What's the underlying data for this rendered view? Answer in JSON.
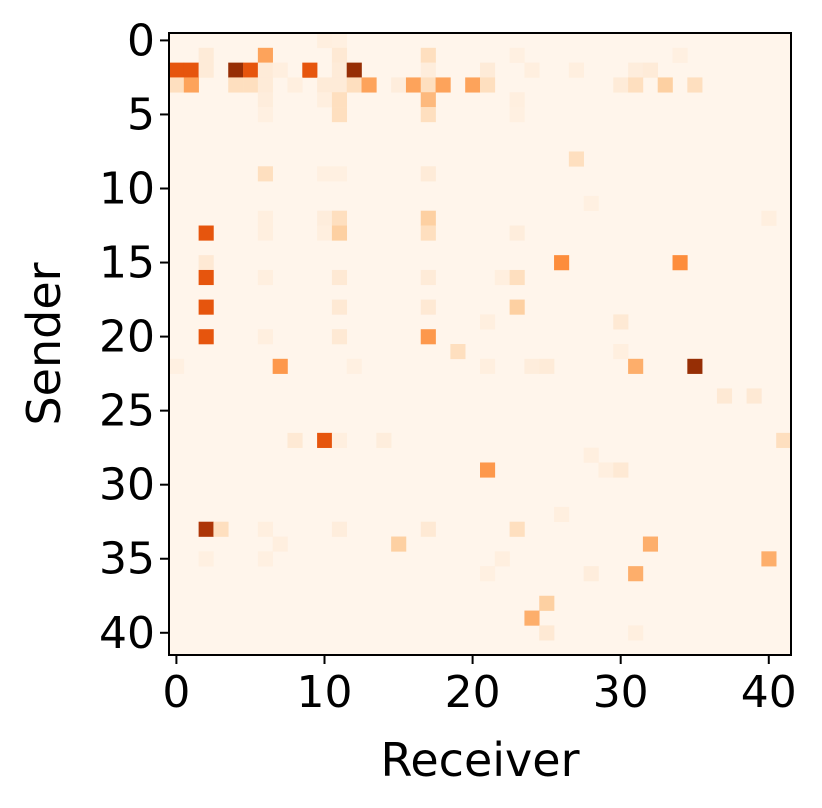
{
  "chart_data": {
    "type": "heatmap",
    "title": "",
    "xlabel": "Receiver",
    "ylabel": "Sender",
    "n_rows": 42,
    "n_cols": 42,
    "xlim": [
      0,
      41
    ],
    "ylim": [
      0,
      41
    ],
    "y_inverted": true,
    "x_ticks": [
      "0",
      "10",
      "20",
      "30",
      "40"
    ],
    "y_ticks": [
      "0",
      "5",
      "10",
      "15",
      "20",
      "25",
      "30",
      "35",
      "40"
    ],
    "colormap": "Oranges",
    "background_color": "#fff5eb",
    "value_range": [
      0,
      1
    ],
    "grid": false,
    "legend": "none",
    "cells": [
      {
        "row": 0,
        "col": 10,
        "value": 0.06
      },
      {
        "row": 0,
        "col": 11,
        "value": 0.05
      },
      {
        "row": 1,
        "col": 2,
        "value": 0.1
      },
      {
        "row": 1,
        "col": 6,
        "value": 0.5
      },
      {
        "row": 1,
        "col": 11,
        "value": 0.12
      },
      {
        "row": 1,
        "col": 17,
        "value": 0.2
      },
      {
        "row": 1,
        "col": 23,
        "value": 0.05
      },
      {
        "row": 1,
        "col": 34,
        "value": 0.05
      },
      {
        "row": 2,
        "col": 0,
        "value": 0.72
      },
      {
        "row": 2,
        "col": 1,
        "value": 0.72
      },
      {
        "row": 2,
        "col": 2,
        "value": 0.1
      },
      {
        "row": 2,
        "col": 4,
        "value": 0.95
      },
      {
        "row": 2,
        "col": 5,
        "value": 0.72
      },
      {
        "row": 2,
        "col": 6,
        "value": 0.1
      },
      {
        "row": 2,
        "col": 7,
        "value": 0.06
      },
      {
        "row": 2,
        "col": 9,
        "value": 0.72
      },
      {
        "row": 2,
        "col": 11,
        "value": 0.1
      },
      {
        "row": 2,
        "col": 12,
        "value": 0.95
      },
      {
        "row": 2,
        "col": 17,
        "value": 0.08
      },
      {
        "row": 2,
        "col": 21,
        "value": 0.1
      },
      {
        "row": 2,
        "col": 24,
        "value": 0.06
      },
      {
        "row": 2,
        "col": 27,
        "value": 0.06
      },
      {
        "row": 2,
        "col": 31,
        "value": 0.08
      },
      {
        "row": 2,
        "col": 32,
        "value": 0.1
      },
      {
        "row": 3,
        "col": 0,
        "value": 0.2
      },
      {
        "row": 3,
        "col": 1,
        "value": 0.5
      },
      {
        "row": 3,
        "col": 4,
        "value": 0.2
      },
      {
        "row": 3,
        "col": 5,
        "value": 0.2
      },
      {
        "row": 3,
        "col": 6,
        "value": 0.1
      },
      {
        "row": 3,
        "col": 8,
        "value": 0.06
      },
      {
        "row": 3,
        "col": 10,
        "value": 0.1
      },
      {
        "row": 3,
        "col": 11,
        "value": 0.1
      },
      {
        "row": 3,
        "col": 12,
        "value": 0.2
      },
      {
        "row": 3,
        "col": 13,
        "value": 0.5
      },
      {
        "row": 3,
        "col": 15,
        "value": 0.08
      },
      {
        "row": 3,
        "col": 16,
        "value": 0.5
      },
      {
        "row": 3,
        "col": 17,
        "value": 0.2
      },
      {
        "row": 3,
        "col": 18,
        "value": 0.5
      },
      {
        "row": 3,
        "col": 20,
        "value": 0.5
      },
      {
        "row": 3,
        "col": 21,
        "value": 0.2
      },
      {
        "row": 3,
        "col": 30,
        "value": 0.1
      },
      {
        "row": 3,
        "col": 31,
        "value": 0.2
      },
      {
        "row": 3,
        "col": 33,
        "value": 0.3
      },
      {
        "row": 3,
        "col": 35,
        "value": 0.2
      },
      {
        "row": 4,
        "col": 6,
        "value": 0.08
      },
      {
        "row": 4,
        "col": 10,
        "value": 0.06
      },
      {
        "row": 4,
        "col": 11,
        "value": 0.2
      },
      {
        "row": 4,
        "col": 17,
        "value": 0.4
      },
      {
        "row": 4,
        "col": 23,
        "value": 0.06
      },
      {
        "row": 5,
        "col": 6,
        "value": 0.05
      },
      {
        "row": 5,
        "col": 11,
        "value": 0.2
      },
      {
        "row": 5,
        "col": 17,
        "value": 0.2
      },
      {
        "row": 5,
        "col": 23,
        "value": 0.05
      },
      {
        "row": 8,
        "col": 27,
        "value": 0.2
      },
      {
        "row": 9,
        "col": 6,
        "value": 0.2
      },
      {
        "row": 9,
        "col": 10,
        "value": 0.05
      },
      {
        "row": 9,
        "col": 11,
        "value": 0.05
      },
      {
        "row": 9,
        "col": 17,
        "value": 0.1
      },
      {
        "row": 11,
        "col": 28,
        "value": 0.05
      },
      {
        "row": 12,
        "col": 6,
        "value": 0.06
      },
      {
        "row": 12,
        "col": 10,
        "value": 0.08
      },
      {
        "row": 12,
        "col": 11,
        "value": 0.2
      },
      {
        "row": 12,
        "col": 17,
        "value": 0.3
      },
      {
        "row": 12,
        "col": 40,
        "value": 0.06
      },
      {
        "row": 13,
        "col": 2,
        "value": 0.72
      },
      {
        "row": 13,
        "col": 6,
        "value": 0.06
      },
      {
        "row": 13,
        "col": 10,
        "value": 0.06
      },
      {
        "row": 13,
        "col": 11,
        "value": 0.3
      },
      {
        "row": 13,
        "col": 17,
        "value": 0.2
      },
      {
        "row": 13,
        "col": 23,
        "value": 0.08
      },
      {
        "row": 15,
        "col": 2,
        "value": 0.12
      },
      {
        "row": 15,
        "col": 26,
        "value": 0.6
      },
      {
        "row": 15,
        "col": 34,
        "value": 0.6
      },
      {
        "row": 16,
        "col": 2,
        "value": 0.72
      },
      {
        "row": 16,
        "col": 6,
        "value": 0.06
      },
      {
        "row": 16,
        "col": 11,
        "value": 0.12
      },
      {
        "row": 16,
        "col": 17,
        "value": 0.1
      },
      {
        "row": 16,
        "col": 22,
        "value": 0.06
      },
      {
        "row": 16,
        "col": 23,
        "value": 0.2
      },
      {
        "row": 18,
        "col": 2,
        "value": 0.72
      },
      {
        "row": 18,
        "col": 11,
        "value": 0.12
      },
      {
        "row": 18,
        "col": 17,
        "value": 0.12
      },
      {
        "row": 18,
        "col": 23,
        "value": 0.3
      },
      {
        "row": 19,
        "col": 21,
        "value": 0.06
      },
      {
        "row": 19,
        "col": 30,
        "value": 0.12
      },
      {
        "row": 20,
        "col": 2,
        "value": 0.72
      },
      {
        "row": 20,
        "col": 6,
        "value": 0.06
      },
      {
        "row": 20,
        "col": 11,
        "value": 0.12
      },
      {
        "row": 20,
        "col": 17,
        "value": 0.55
      },
      {
        "row": 21,
        "col": 19,
        "value": 0.2
      },
      {
        "row": 21,
        "col": 30,
        "value": 0.06
      },
      {
        "row": 22,
        "col": 0,
        "value": 0.05
      },
      {
        "row": 22,
        "col": 7,
        "value": 0.55
      },
      {
        "row": 22,
        "col": 12,
        "value": 0.05
      },
      {
        "row": 22,
        "col": 21,
        "value": 0.06
      },
      {
        "row": 22,
        "col": 24,
        "value": 0.08
      },
      {
        "row": 22,
        "col": 25,
        "value": 0.1
      },
      {
        "row": 22,
        "col": 31,
        "value": 0.45
      },
      {
        "row": 22,
        "col": 35,
        "value": 0.95
      },
      {
        "row": 24,
        "col": 37,
        "value": 0.12
      },
      {
        "row": 24,
        "col": 39,
        "value": 0.12
      },
      {
        "row": 27,
        "col": 8,
        "value": 0.12
      },
      {
        "row": 27,
        "col": 10,
        "value": 0.72
      },
      {
        "row": 27,
        "col": 11,
        "value": 0.06
      },
      {
        "row": 27,
        "col": 14,
        "value": 0.08
      },
      {
        "row": 27,
        "col": 41,
        "value": 0.2
      },
      {
        "row": 28,
        "col": 28,
        "value": 0.06
      },
      {
        "row": 29,
        "col": 21,
        "value": 0.55
      },
      {
        "row": 29,
        "col": 29,
        "value": 0.06
      },
      {
        "row": 29,
        "col": 30,
        "value": 0.12
      },
      {
        "row": 32,
        "col": 26,
        "value": 0.06
      },
      {
        "row": 33,
        "col": 2,
        "value": 0.9
      },
      {
        "row": 33,
        "col": 3,
        "value": 0.2
      },
      {
        "row": 33,
        "col": 6,
        "value": 0.06
      },
      {
        "row": 33,
        "col": 11,
        "value": 0.08
      },
      {
        "row": 33,
        "col": 17,
        "value": 0.12
      },
      {
        "row": 33,
        "col": 23,
        "value": 0.2
      },
      {
        "row": 34,
        "col": 7,
        "value": 0.06
      },
      {
        "row": 34,
        "col": 15,
        "value": 0.3
      },
      {
        "row": 34,
        "col": 32,
        "value": 0.45
      },
      {
        "row": 35,
        "col": 2,
        "value": 0.05
      },
      {
        "row": 35,
        "col": 6,
        "value": 0.05
      },
      {
        "row": 35,
        "col": 22,
        "value": 0.06
      },
      {
        "row": 35,
        "col": 40,
        "value": 0.45
      },
      {
        "row": 36,
        "col": 21,
        "value": 0.05
      },
      {
        "row": 36,
        "col": 28,
        "value": 0.08
      },
      {
        "row": 36,
        "col": 31,
        "value": 0.45
      },
      {
        "row": 38,
        "col": 25,
        "value": 0.3
      },
      {
        "row": 39,
        "col": 24,
        "value": 0.45
      },
      {
        "row": 40,
        "col": 25,
        "value": 0.12
      },
      {
        "row": 40,
        "col": 31,
        "value": 0.06
      }
    ]
  }
}
